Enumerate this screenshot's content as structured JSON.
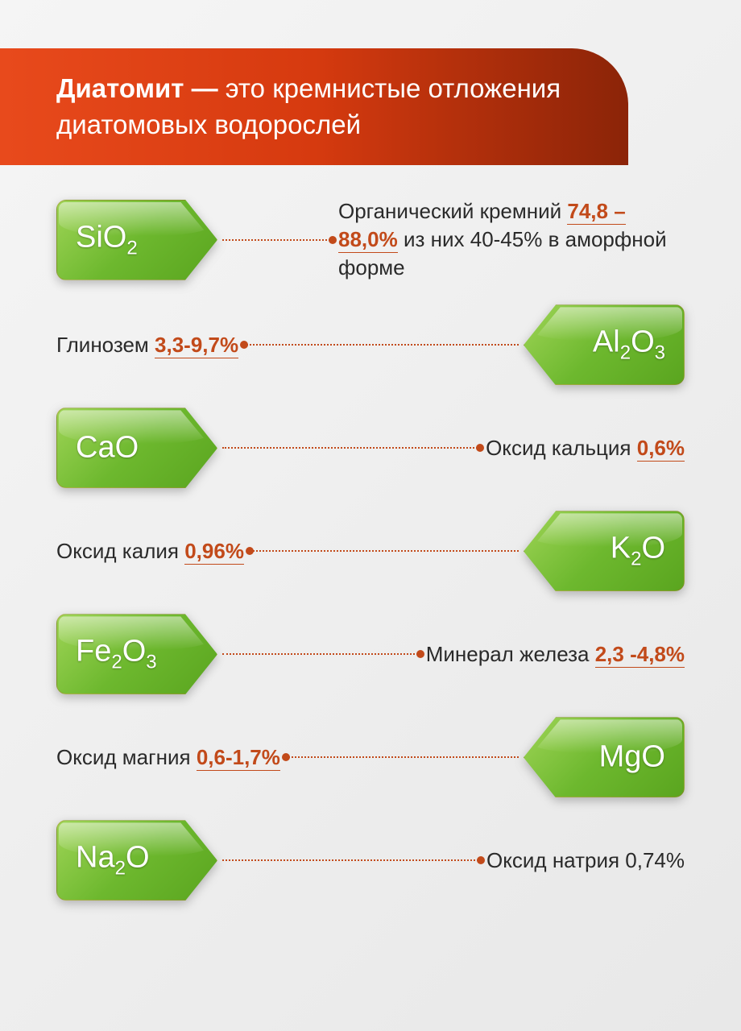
{
  "colors": {
    "header_gradient_start": "#e84a1c",
    "header_gradient_mid": "#d63a0f",
    "header_gradient_end": "#8b2408",
    "badge_gradient_start": "#9ed456",
    "badge_gradient_mid": "#6db82e",
    "badge_gradient_end": "#5aa51f",
    "accent": "#c24a1a",
    "text": "#2a2a2a",
    "white": "#ffffff",
    "background_start": "#f5f5f5",
    "background_end": "#e8e8e8"
  },
  "typography": {
    "header_fontsize": 33,
    "formula_fontsize": 38,
    "formula_sub_fontsize": 24,
    "desc_fontsize": 26
  },
  "header": {
    "bold": "Диатомит —",
    "rest": " это кремнистые отложения диатомовых водорослей"
  },
  "items": [
    {
      "side": "left",
      "formula_html": "SiO<sub>2</sub>",
      "desc_pre": "Органический кремний ",
      "pct": "74,8 – 88,0%",
      "desc_post": " из них 40-45% в аморфной форме",
      "pct_underline": true
    },
    {
      "side": "right",
      "formula_html": "Al<sub>2</sub>O<sub>3</sub>",
      "desc_pre": "Глинозем ",
      "pct": "3,3-9,7%",
      "desc_post": "",
      "pct_underline": true
    },
    {
      "side": "left",
      "formula_html": "CaO",
      "desc_pre": "Оксид кальция ",
      "pct": "0,6%",
      "desc_post": "",
      "pct_underline": true
    },
    {
      "side": "right",
      "formula_html": "K<sub>2</sub>O",
      "desc_pre": "Оксид калия ",
      "pct": "0,96%",
      "desc_post": "",
      "pct_underline": true
    },
    {
      "side": "left",
      "formula_html": "Fe<sub>2</sub>O<sub>3</sub>",
      "desc_pre": "Минерал железа ",
      "pct": "2,3 -4,8%",
      "desc_post": "",
      "pct_underline": true
    },
    {
      "side": "right",
      "formula_html": "MgO",
      "desc_pre": "Оксид магния ",
      "pct": "0,6-1,7%",
      "desc_post": "",
      "pct_underline": true
    },
    {
      "side": "left",
      "formula_html": "Na<sub>2</sub>O",
      "desc_pre": "Оксид натрия 0,74%",
      "pct": "",
      "desc_post": "",
      "pct_underline": false
    }
  ]
}
